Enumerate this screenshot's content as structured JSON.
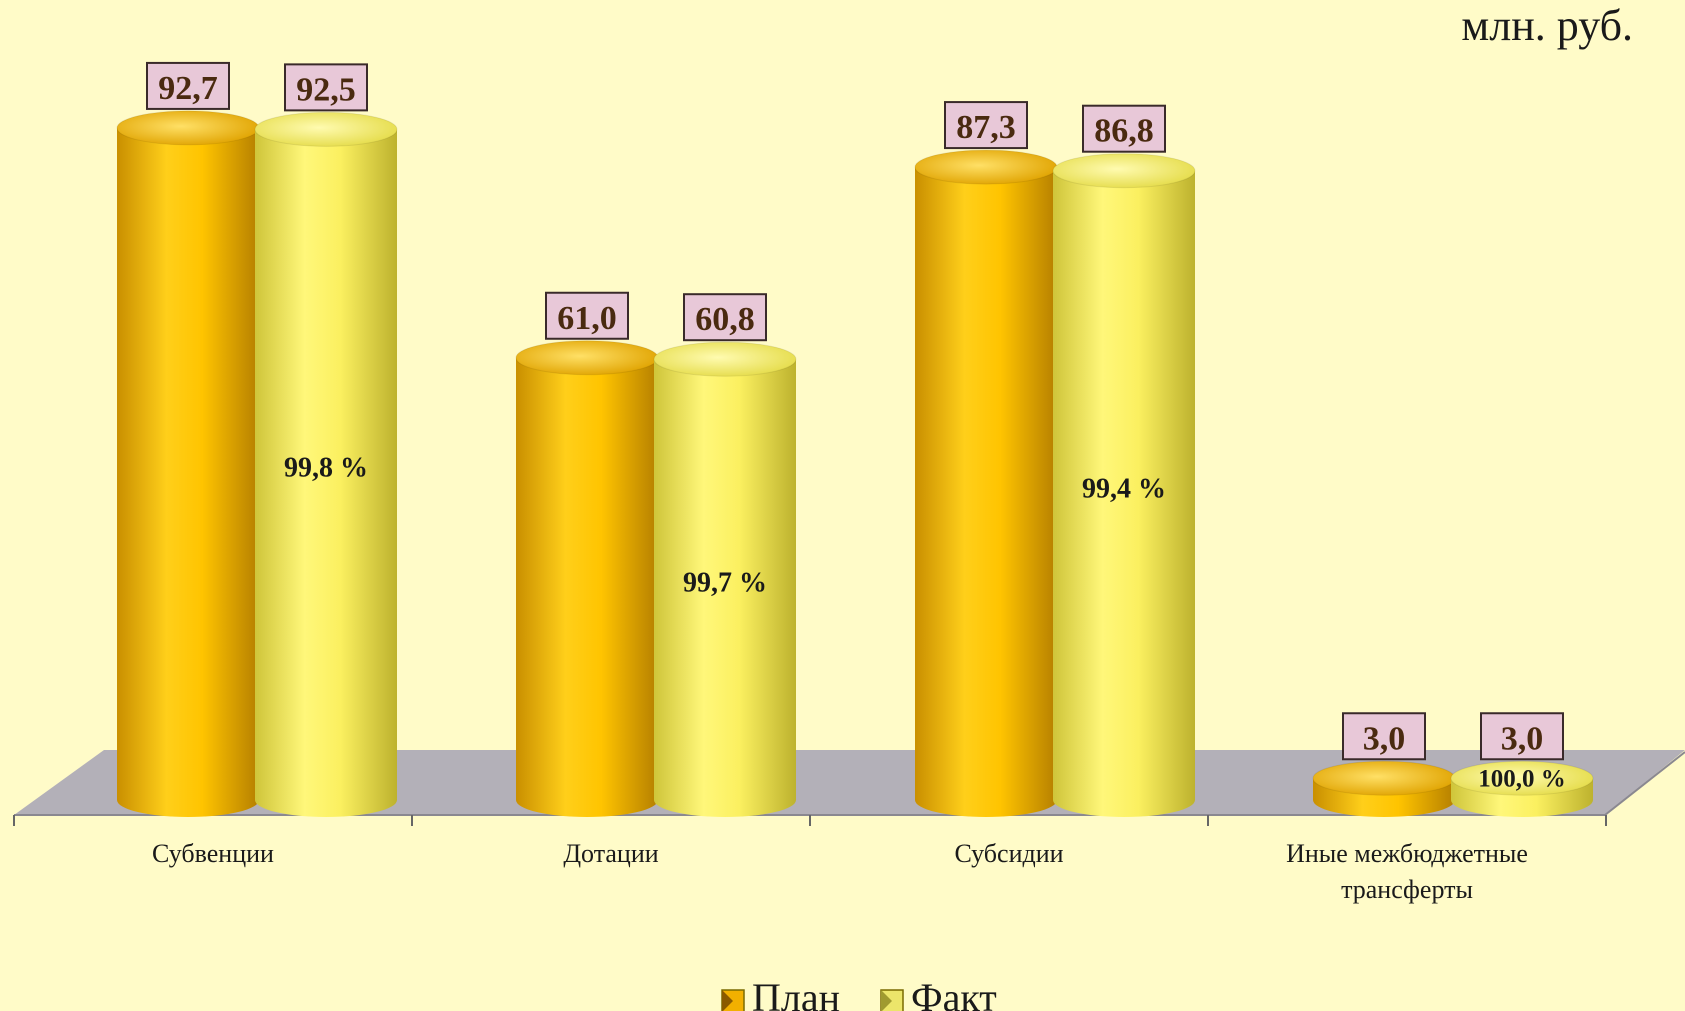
{
  "unit": "млн. руб.",
  "chart_data": {
    "type": "bar",
    "style": "3d-cylinder",
    "categories": [
      "Субвенции",
      "Дотации",
      "Субсидии",
      "Иные межбюджетные трансферты"
    ],
    "category_lines": [
      [
        "Субвенции"
      ],
      [
        "Дотации"
      ],
      [
        "Субсидии"
      ],
      [
        "Иные межбюджетные",
        "трансферты"
      ]
    ],
    "series": [
      {
        "name": "План",
        "values": [
          92.7,
          61.0,
          87.3,
          3.0
        ],
        "labels": [
          "92,7",
          "61,0",
          "87,3",
          "3,0"
        ],
        "color": "#f7b800"
      },
      {
        "name": "Факт",
        "values": [
          92.5,
          60.8,
          86.8,
          3.0
        ],
        "labels": [
          "92,5",
          "60,8",
          "86,8",
          "3,0"
        ],
        "color": "#f4ec5a"
      }
    ],
    "percent_labels": [
      "99,8 %",
      "99,7 %",
      "99,4 %",
      "100,0 %"
    ],
    "legend_position": "bottom",
    "grid": false,
    "colors": {
      "background": "#fffbc8",
      "floor": "#b3b0b8",
      "value_label_bg": "#e8c8d8",
      "plan": "#f7b800",
      "fact": "#f4ec5a"
    }
  }
}
